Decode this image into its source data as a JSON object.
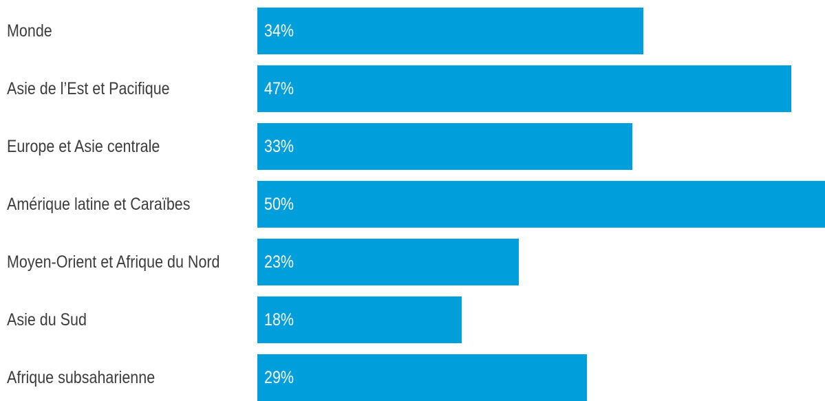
{
  "chart_data": {
    "type": "bar",
    "orientation": "horizontal",
    "categories": [
      "Monde",
      "Asie de l’Est et Pacifique",
      "Europe et Asie centrale",
      "Amérique latine et Caraïbes",
      "Moyen-Orient et Afrique du Nord",
      "Asie du Sud",
      "Afrique subsaharienne"
    ],
    "values": [
      34,
      47,
      33,
      50,
      23,
      18,
      29
    ],
    "value_labels": [
      "34%",
      "47%",
      "33%",
      "50%",
      "23%",
      "18%",
      "29%"
    ],
    "xlim": [
      0,
      50
    ],
    "grid": false,
    "legend": "none",
    "bar_color": "#009fdb",
    "label_color": "#3c3c3c",
    "value_label_color": "#ffffff"
  }
}
